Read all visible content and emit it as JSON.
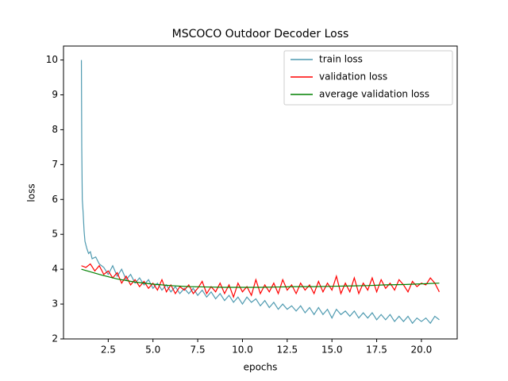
{
  "chart_data": {
    "type": "line",
    "title": "MSCOCO Outdoor Decoder Loss",
    "x_label": "epochs",
    "y_label": "loss",
    "xlim": [
      0,
      22
    ],
    "ylim": [
      2,
      10.4
    ],
    "xticks": [
      2.5,
      {
        "value": 5,
        "label": "5.0"
      },
      7.5,
      {
        "value": 10,
        "label": "10.0"
      },
      12.5,
      {
        "value": 15,
        "label": "15.0"
      },
      17.5,
      {
        "value": 20,
        "label": "20.0"
      }
    ],
    "yticks": [
      2,
      3,
      4,
      5,
      6,
      7,
      8,
      9,
      10
    ],
    "legend": "upper right",
    "series": [
      {
        "name": "train loss",
        "color": "#4f9ab0",
        "x": [
          1,
          1.02,
          1.05,
          1.1,
          1.15,
          1.2,
          1.3,
          1.4,
          1.5,
          1.6,
          1.8,
          2.0,
          2.25,
          2.5,
          2.75,
          3.0,
          3.25,
          3.5,
          3.75,
          4.0,
          4.25,
          4.5,
          4.75,
          5.0,
          5.25,
          5.5,
          5.75,
          6.0,
          6.25,
          6.5,
          6.75,
          7.0,
          7.25,
          7.5,
          7.75,
          8.0,
          8.25,
          8.5,
          8.75,
          9.0,
          9.25,
          9.5,
          9.75,
          10.0,
          10.25,
          10.5,
          10.75,
          11.0,
          11.25,
          11.5,
          11.75,
          12.0,
          12.25,
          12.5,
          12.75,
          13.0,
          13.25,
          13.5,
          13.75,
          14.0,
          14.25,
          14.5,
          14.75,
          15.0,
          15.25,
          15.5,
          15.75,
          16.0,
          16.25,
          16.5,
          16.75,
          17.0,
          17.25,
          17.5,
          17.75,
          18.0,
          18.25,
          18.5,
          18.75,
          19.0,
          19.25,
          19.5,
          19.75,
          20.0,
          20.25,
          20.5,
          20.75,
          21.0
        ],
        "values": [
          10.0,
          7.5,
          6.0,
          5.6,
          5.1,
          4.8,
          4.6,
          4.45,
          4.5,
          4.3,
          4.35,
          4.15,
          4.05,
          3.85,
          4.1,
          3.8,
          4.0,
          3.7,
          3.85,
          3.6,
          3.75,
          3.55,
          3.7,
          3.45,
          3.6,
          3.4,
          3.55,
          3.35,
          3.5,
          3.3,
          3.45,
          3.3,
          3.45,
          3.25,
          3.4,
          3.2,
          3.35,
          3.15,
          3.3,
          3.1,
          3.25,
          3.05,
          3.2,
          3.0,
          3.2,
          3.05,
          3.15,
          2.95,
          3.1,
          2.9,
          3.05,
          2.85,
          3.0,
          2.85,
          2.95,
          2.8,
          2.95,
          2.75,
          2.9,
          2.7,
          2.9,
          2.7,
          2.85,
          2.6,
          2.85,
          2.7,
          2.8,
          2.65,
          2.8,
          2.6,
          2.75,
          2.6,
          2.75,
          2.55,
          2.7,
          2.55,
          2.7,
          2.5,
          2.65,
          2.5,
          2.65,
          2.45,
          2.6,
          2.5,
          2.6,
          2.45,
          2.65,
          2.55
        ]
      },
      {
        "name": "validation loss",
        "color": "#ff0000",
        "x": [
          1,
          1.25,
          1.5,
          1.75,
          2,
          2.25,
          2.5,
          2.75,
          3,
          3.25,
          3.5,
          3.75,
          4,
          4.25,
          4.5,
          4.75,
          5,
          5.25,
          5.5,
          5.75,
          6,
          6.25,
          6.5,
          6.75,
          7,
          7.25,
          7.5,
          7.75,
          8,
          8.25,
          8.5,
          8.75,
          9,
          9.25,
          9.5,
          9.75,
          10,
          10.25,
          10.5,
          10.75,
          11,
          11.25,
          11.5,
          11.75,
          12,
          12.25,
          12.5,
          12.75,
          13,
          13.25,
          13.5,
          13.75,
          14,
          14.25,
          14.5,
          14.75,
          15,
          15.25,
          15.5,
          15.75,
          16,
          16.25,
          16.5,
          16.75,
          17,
          17.25,
          17.5,
          17.75,
          18,
          18.25,
          18.5,
          18.75,
          19,
          19.25,
          19.5,
          19.75,
          20,
          20.25,
          20.5,
          20.75,
          21
        ],
        "values": [
          4.1,
          4.05,
          4.15,
          3.95,
          4.1,
          3.85,
          3.95,
          3.75,
          3.9,
          3.6,
          3.8,
          3.55,
          3.7,
          3.5,
          3.65,
          3.45,
          3.6,
          3.4,
          3.7,
          3.35,
          3.55,
          3.3,
          3.5,
          3.4,
          3.55,
          3.3,
          3.45,
          3.65,
          3.3,
          3.5,
          3.35,
          3.6,
          3.3,
          3.55,
          3.2,
          3.6,
          3.35,
          3.5,
          3.25,
          3.7,
          3.3,
          3.55,
          3.35,
          3.6,
          3.3,
          3.7,
          3.4,
          3.55,
          3.3,
          3.6,
          3.4,
          3.55,
          3.3,
          3.65,
          3.35,
          3.6,
          3.4,
          3.8,
          3.3,
          3.6,
          3.35,
          3.75,
          3.3,
          3.6,
          3.4,
          3.75,
          3.35,
          3.7,
          3.45,
          3.6,
          3.4,
          3.7,
          3.55,
          3.35,
          3.65,
          3.5,
          3.6,
          3.55,
          3.75,
          3.6,
          3.35
        ]
      },
      {
        "name": "average validation loss",
        "color": "#008000",
        "x": [
          1,
          2,
          3,
          4,
          5,
          6,
          7,
          8,
          9,
          10,
          11,
          12,
          13,
          14,
          15,
          16,
          17,
          18,
          19,
          20,
          21
        ],
        "values": [
          4.0,
          3.85,
          3.72,
          3.63,
          3.57,
          3.53,
          3.5,
          3.49,
          3.48,
          3.48,
          3.48,
          3.49,
          3.5,
          3.5,
          3.51,
          3.52,
          3.53,
          3.55,
          3.56,
          3.58,
          3.6
        ]
      }
    ]
  }
}
